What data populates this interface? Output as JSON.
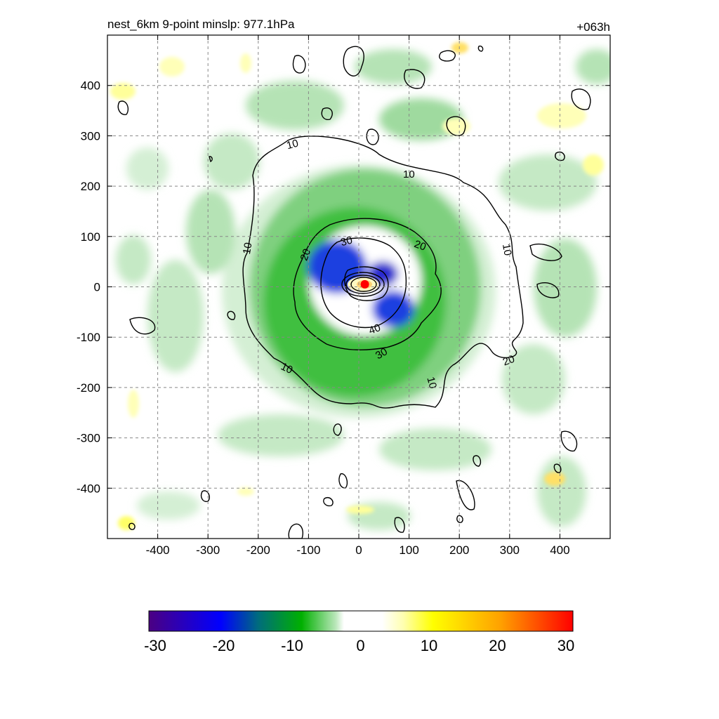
{
  "chart_data": {
    "type": "heatmap",
    "title_left": "nest_6km  9-point minslp: 977.1hPa",
    "title_right": "+063h",
    "xlim": [
      -500,
      500
    ],
    "ylim": [
      -500,
      500
    ],
    "x_ticks": [
      -400,
      -300,
      -200,
      -100,
      0,
      100,
      200,
      300,
      400
    ],
    "y_ticks": [
      400,
      300,
      200,
      100,
      0,
      -100,
      -200,
      -300,
      -400
    ],
    "grid": true,
    "colorbar": {
      "ticks": [
        -30,
        -20,
        -10,
        0,
        10,
        20,
        30
      ],
      "range": [
        -30,
        30
      ],
      "colors": [
        "#4b0082",
        "#0000ff",
        "#00aa00",
        "#ffffff",
        "#ffff00",
        "#ff0000"
      ]
    },
    "contour_labels": [
      "10",
      "10",
      "10",
      "10",
      "10",
      "10",
      "20",
      "20",
      "20",
      "30",
      "30",
      "40"
    ],
    "center_marker": {
      "x": 12,
      "y": 5,
      "color": "#ff0000"
    }
  }
}
